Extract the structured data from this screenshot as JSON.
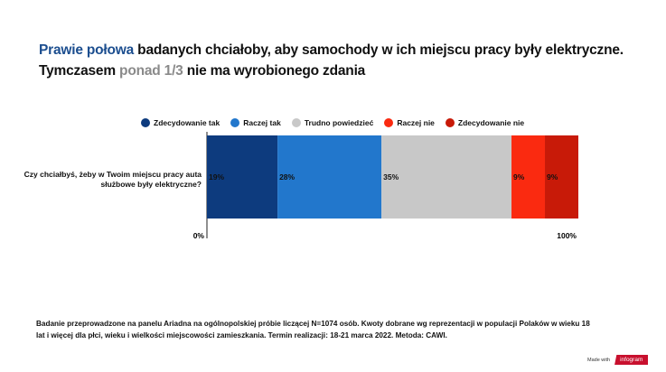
{
  "title": {
    "line1_highlight": "Prawie połowa",
    "line1_rest": " badanych chciałoby, aby samochody w ich miejscu pracy były elektryczne.",
    "line2_start": "Tymczasem ",
    "line2_highlight": "ponad 1/3",
    "line2_rest": " nie ma wyrobionego zdania"
  },
  "colors": {
    "title_highlight": "#1c4e8f",
    "title_gray": "#8a8a8a"
  },
  "chart_data": {
    "type": "bar",
    "orientation": "horizontal",
    "stacked": true,
    "categories": [
      "Czy chciałbyś, żeby w Twoim miejscu pracy auta służbowe były elektryczne?"
    ],
    "series": [
      {
        "name": "Zdecydowanie tak",
        "values": [
          19
        ],
        "color": "#0d3b7e",
        "label": "19%"
      },
      {
        "name": "Raczej tak",
        "values": [
          28
        ],
        "color": "#2277cc",
        "label": "28%"
      },
      {
        "name": "Trudno powiedzieć",
        "values": [
          35
        ],
        "color": "#c8c8c8",
        "label": "35%"
      },
      {
        "name": "Raczej nie",
        "values": [
          9
        ],
        "color": "#fa2a10",
        "label": "9%"
      },
      {
        "name": "Zdecydowanie nie",
        "values": [
          9
        ],
        "color": "#c81a08",
        "label": "9%"
      }
    ],
    "xlim": [
      0,
      100
    ],
    "x_tick_labels": [
      "0%",
      "100%"
    ],
    "legend_position": "top"
  },
  "footnote": "Badanie przeprowadzone na panelu Ariadna na ogólnopolskiej próbie liczącej N=1074 osób. Kwoty dobrane wg reprezentacji w populacji Polaków w wieku 18 lat i więcej dla płci, wieku i wielkości miejscowości zamieszkania. Termin realizacji:  18-21 marca 2022. Metoda: CAWI.",
  "branding": {
    "made_with": "Made with",
    "brand": "infogram"
  }
}
